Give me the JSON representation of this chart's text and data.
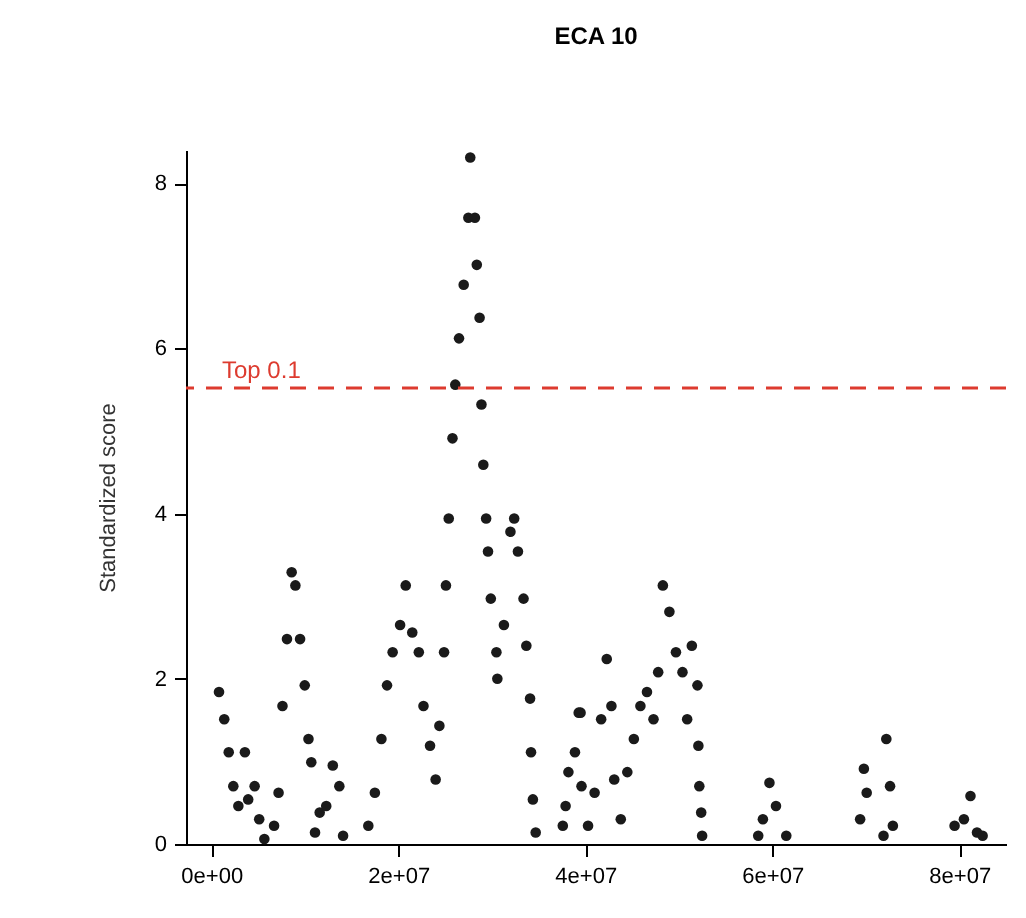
{
  "chart_data": {
    "type": "scatter",
    "title": "ECA 10",
    "ylabel": "Standardized score",
    "x": [
      830000,
      1390000,
      1870000,
      2360000,
      2900000,
      3600000,
      3950000,
      4640000,
      5130000,
      5680000,
      6720000,
      7200000,
      7620000,
      8100000,
      8600000,
      9000000,
      9500000,
      10000000,
      10400000,
      10700000,
      11100000,
      11600000,
      12300000,
      13000000,
      13700000,
      14100000,
      16800000,
      17500000,
      18200000,
      18800000,
      19400000,
      20200000,
      20800000,
      21500000,
      22200000,
      22700000,
      23400000,
      24000000,
      24400000,
      24900000,
      25100000,
      25400000,
      25800000,
      26100000,
      26500000,
      27000000,
      27500000,
      27700000,
      28200000,
      28400000,
      28700000,
      28900000,
      29100000,
      29400000,
      29600000,
      29900000,
      30500000,
      30600000,
      31300000,
      32000000,
      32400000,
      32800000,
      33400000,
      33700000,
      34100000,
      34200000,
      34400000,
      34700000,
      37600000,
      37900000,
      38200000,
      38900000,
      39300000,
      39500000,
      39600000,
      40300000,
      41000000,
      41700000,
      42300000,
      42800000,
      43100000,
      43800000,
      44500000,
      45200000,
      45900000,
      46600000,
      47300000,
      47800000,
      48300000,
      49000000,
      49700000,
      50400000,
      50900000,
      51400000,
      52000000,
      52100000,
      52200000,
      52400000,
      52500000,
      58500000,
      59000000,
      59700000,
      60400000,
      61500000,
      69400000,
      69800000,
      70100000,
      71900000,
      72200000,
      72600000,
      72900000,
      79500000,
      80500000,
      81200000,
      81900000,
      82500000
    ],
    "values": [
      1.84,
      1.51,
      1.11,
      0.7,
      0.46,
      1.11,
      0.54,
      0.7,
      0.3,
      0.06,
      0.22,
      0.62,
      1.67,
      2.48,
      3.29,
      3.13,
      2.48,
      1.92,
      1.27,
      0.99,
      0.14,
      0.38,
      0.46,
      0.95,
      0.7,
      0.1,
      0.22,
      0.62,
      1.27,
      1.92,
      2.32,
      2.65,
      3.13,
      2.56,
      2.32,
      1.67,
      1.19,
      0.78,
      1.43,
      2.32,
      3.13,
      3.94,
      4.91,
      5.56,
      6.12,
      6.77,
      7.58,
      8.31,
      7.58,
      7.01,
      6.37,
      5.32,
      4.59,
      3.94,
      3.54,
      2.97,
      2.32,
      2.0,
      2.65,
      3.78,
      3.94,
      3.54,
      2.97,
      2.4,
      1.76,
      1.11,
      0.54,
      0.14,
      0.22,
      0.46,
      0.87,
      1.11,
      1.59,
      1.59,
      0.7,
      0.22,
      0.62,
      1.51,
      2.24,
      1.67,
      0.78,
      0.3,
      0.87,
      1.27,
      1.67,
      1.84,
      1.51,
      2.08,
      3.13,
      2.81,
      2.32,
      2.08,
      1.51,
      2.4,
      1.92,
      1.19,
      0.7,
      0.38,
      0.1,
      0.1,
      0.3,
      0.74,
      0.46,
      0.1,
      0.3,
      0.91,
      0.62,
      0.1,
      1.27,
      0.7,
      0.22,
      0.22,
      0.3,
      0.58,
      0.14,
      0.1
    ],
    "color": "#1a1a1a",
    "marker": "circle",
    "xlim": [
      -2700000,
      85000000
    ],
    "xticks": [
      {
        "value": 0,
        "label": "0e+00"
      },
      {
        "value": 20000000,
        "label": "2e+07"
      },
      {
        "value": 40000000,
        "label": "4e+07"
      },
      {
        "value": 60000000,
        "label": "6e+07"
      },
      {
        "value": 80000000,
        "label": "8e+07"
      }
    ],
    "ylim": [
      0,
      8.4
    ],
    "yticks": [
      0,
      2,
      4,
      6,
      8
    ],
    "grid": false,
    "ref_lines": [
      {
        "axis": "y",
        "value": 5.52,
        "label": "Top 0.1",
        "color": "#dd3b2f",
        "line_style": "dashed"
      }
    ]
  }
}
